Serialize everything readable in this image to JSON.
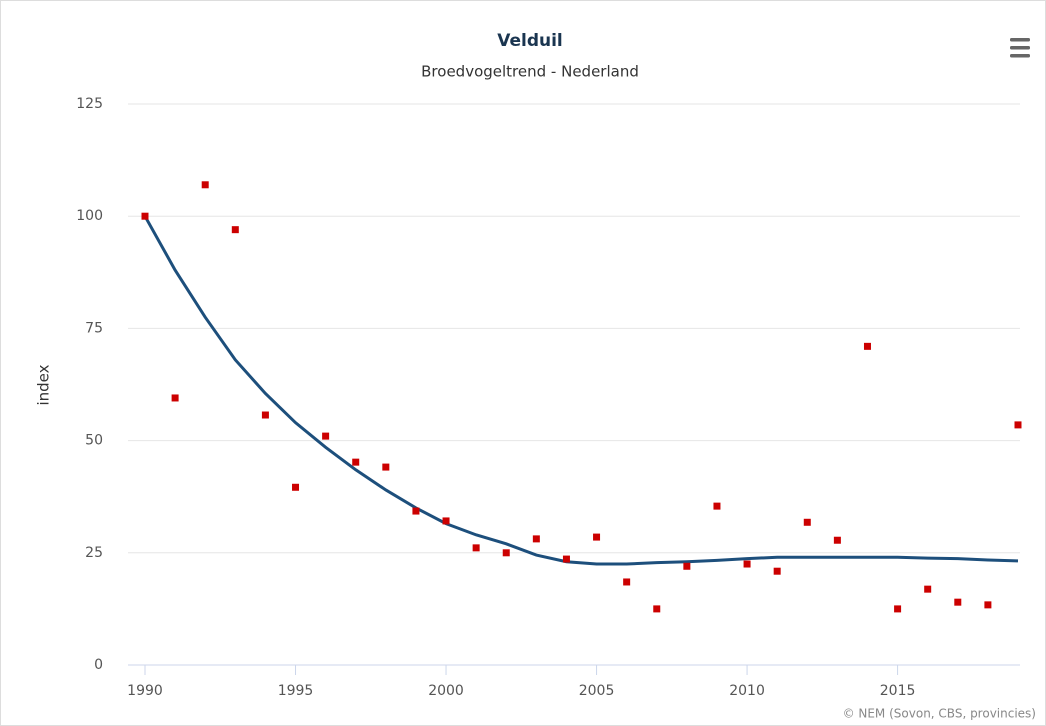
{
  "chart_data": {
    "type": "scatter",
    "title": "Velduil",
    "subtitle": "Broedvogeltrend - Nederland",
    "y_label": "index",
    "credits": "© NEM (Sovon, CBS, provincies)",
    "x": [
      1990,
      1991,
      1992,
      1993,
      1994,
      1995,
      1996,
      1997,
      1998,
      1999,
      2000,
      2001,
      2002,
      2003,
      2004,
      2005,
      2006,
      2007,
      2008,
      2009,
      2010,
      2011,
      2012,
      2013,
      2014,
      2015,
      2016,
      2017,
      2018,
      2019
    ],
    "series": [
      {
        "type": "line",
        "color": "#1d4f7c",
        "values": [
          100,
          88,
          77.5,
          68,
          60.5,
          54,
          48.5,
          43.5,
          39,
          35,
          31.5,
          29,
          27,
          24.5,
          23,
          22.5,
          22.5,
          22.8,
          23,
          23.3,
          23.7,
          24,
          24,
          24,
          24,
          24,
          23.8,
          23.7,
          23.4,
          23.2
        ]
      },
      {
        "type": "scatter",
        "color": "#cc0000",
        "values": [
          100,
          59.5,
          107,
          97,
          55.7,
          39.6,
          51,
          45.2,
          44.1,
          34.3,
          32.1,
          26.1,
          25,
          28.1,
          23.6,
          28.5,
          18.5,
          12.5,
          22,
          35.4,
          22.5,
          20.9,
          31.8,
          27.8,
          71,
          12.5,
          16.9,
          14,
          13.4,
          53.5
        ]
      }
    ],
    "xlim": [
      1990,
      2019
    ],
    "xticks": [
      1990,
      1995,
      2000,
      2005,
      2010,
      2015
    ],
    "ylim": [
      0,
      125
    ],
    "yticks": [
      0,
      25,
      50,
      75,
      100,
      125
    ],
    "grid": true
  }
}
